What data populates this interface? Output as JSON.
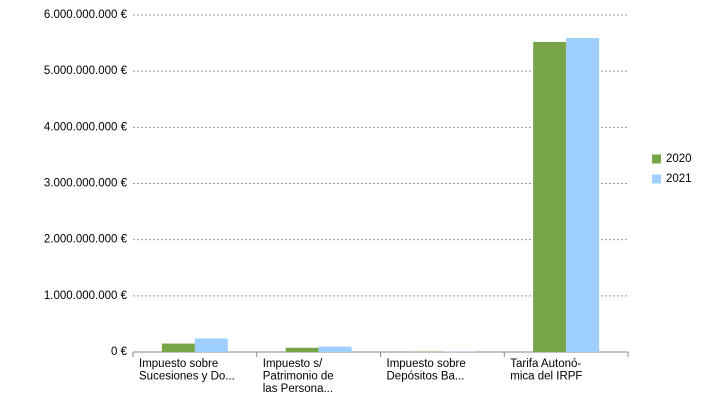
{
  "chart_data": {
    "type": "bar",
    "categories": [
      "Impuesto sobre\nSucesiones y Do...",
      "Impuesto s/\nPatrimonio de\nlas Persona...",
      "Impuesto sobre\nDepósitos Ba...",
      "Tarifa Autonó-\nmica del IRPF"
    ],
    "series": [
      {
        "name": "2020",
        "color": "#77a548",
        "values": [
          150000000,
          75000000,
          5000000,
          5520000000
        ]
      },
      {
        "name": "2021",
        "color": "#9fcfff",
        "values": [
          240000000,
          95000000,
          6000000,
          5590000000
        ]
      }
    ],
    "ylim": [
      0,
      6000000000
    ],
    "yticks": [
      {
        "value": 0,
        "label": "0 €"
      },
      {
        "value": 1000000000,
        "label": "1.000.000.000 €"
      },
      {
        "value": 2000000000,
        "label": "2.000.000.000 €"
      },
      {
        "value": 3000000000,
        "label": "3.000.000.000 €"
      },
      {
        "value": 4000000000,
        "label": "4.000.000.000 €"
      },
      {
        "value": 5000000000,
        "label": "5.000.000.000 €"
      },
      {
        "value": 6000000000,
        "label": "6.000.000.000 €"
      }
    ],
    "grid": true,
    "legend": "right"
  }
}
